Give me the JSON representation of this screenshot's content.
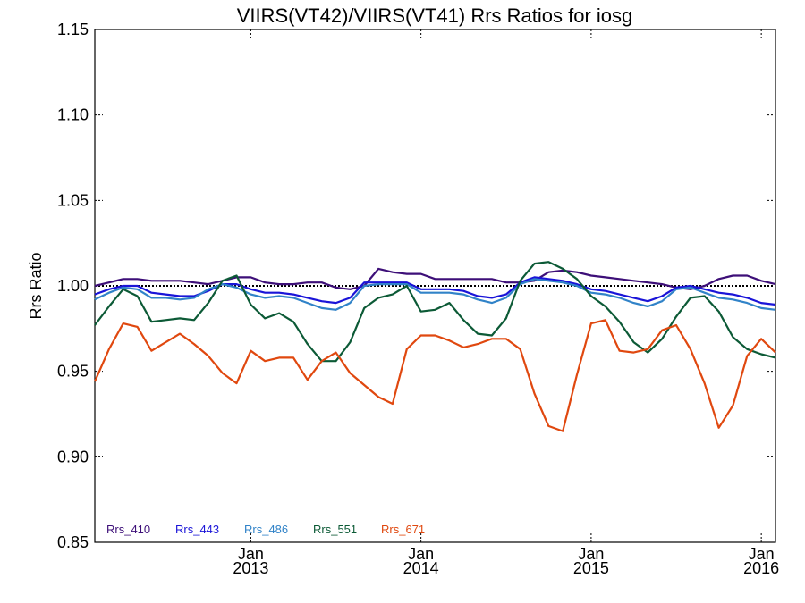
{
  "chart_data": {
    "type": "line",
    "title": "VIIRS(VT42)/VIIRS(VT41)  Rrs Ratios for iosg",
    "xlabel": "",
    "ylabel": "Rrs Ratio",
    "ylim": [
      0.85,
      1.15
    ],
    "y_ticks": [
      "0.85",
      "0.90",
      "0.95",
      "1.00",
      "1.05",
      "1.10",
      "1.15"
    ],
    "x_ticks": [
      {
        "month": "Jan",
        "year": "2013"
      },
      {
        "month": "Jan",
        "year": "2014"
      },
      {
        "month": "Jan",
        "year": "2015"
      },
      {
        "month": "Jan",
        "year": "2016"
      }
    ],
    "reference_line": 1.0,
    "grid": false,
    "legend_position": "bottom-left",
    "x_dates": [
      "2012-02",
      "2012-03",
      "2012-04",
      "2012-05",
      "2012-06",
      "2012-07",
      "2012-08",
      "2012-09",
      "2012-10",
      "2012-11",
      "2012-12",
      "2013-01",
      "2013-02",
      "2013-03",
      "2013-04",
      "2013-05",
      "2013-06",
      "2013-07",
      "2013-08",
      "2013-09",
      "2013-10",
      "2013-11",
      "2013-12",
      "2014-01",
      "2014-02",
      "2014-03",
      "2014-04",
      "2014-05",
      "2014-06",
      "2014-07",
      "2014-08",
      "2014-09",
      "2014-10",
      "2014-11",
      "2014-12",
      "2015-01",
      "2015-02",
      "2015-03",
      "2015-04",
      "2015-05",
      "2015-06",
      "2015-07",
      "2015-08",
      "2015-09",
      "2015-10",
      "2015-11",
      "2015-12",
      "2016-01",
      "2016-02"
    ],
    "series": [
      {
        "name": "Rrs_410",
        "color": "#3d0f78",
        "values": [
          1.0,
          1.002,
          1.004,
          1.004,
          1.003,
          1.003,
          1.003,
          1.002,
          1.001,
          1.003,
          1.005,
          1.005,
          1.002,
          1.001,
          1.001,
          1.002,
          1.002,
          0.999,
          0.998,
          1.0,
          1.01,
          1.008,
          1.007,
          1.007,
          1.004,
          1.004,
          1.004,
          1.004,
          1.004,
          1.002,
          1.002,
          1.003,
          1.008,
          1.009,
          1.008,
          1.006,
          1.005,
          1.004,
          1.003,
          1.002,
          1.001,
          0.999,
          0.998,
          1.0,
          1.004,
          1.006,
          1.006,
          1.003,
          1.001
        ]
      },
      {
        "name": "Rrs_443",
        "color": "#1a14d8",
        "values": [
          0.995,
          0.998,
          1.0,
          1.0,
          0.996,
          0.995,
          0.994,
          0.994,
          0.997,
          1.001,
          1.001,
          0.998,
          0.996,
          0.996,
          0.995,
          0.993,
          0.991,
          0.99,
          0.993,
          1.002,
          1.002,
          1.002,
          1.002,
          0.998,
          0.998,
          0.998,
          0.997,
          0.994,
          0.993,
          0.995,
          1.002,
          1.005,
          1.004,
          1.003,
          1.001,
          0.998,
          0.997,
          0.995,
          0.993,
          0.991,
          0.994,
          0.999,
          1.0,
          0.998,
          0.996,
          0.995,
          0.993,
          0.99,
          0.989
        ]
      },
      {
        "name": "Rrs_486",
        "color": "#3183c8",
        "values": [
          0.992,
          0.996,
          0.999,
          0.998,
          0.993,
          0.993,
          0.992,
          0.993,
          0.998,
          1.001,
          0.999,
          0.995,
          0.993,
          0.994,
          0.993,
          0.99,
          0.987,
          0.986,
          0.99,
          1.0,
          1.001,
          1.001,
          1.001,
          0.996,
          0.996,
          0.996,
          0.995,
          0.992,
          0.99,
          0.993,
          1.001,
          1.004,
          1.003,
          1.002,
          1.0,
          0.996,
          0.995,
          0.993,
          0.99,
          0.988,
          0.991,
          0.998,
          0.999,
          0.996,
          0.993,
          0.992,
          0.99,
          0.987,
          0.986
        ]
      },
      {
        "name": "Rrs_551",
        "color": "#0c5a36",
        "values": [
          0.977,
          0.988,
          0.998,
          0.994,
          0.979,
          0.98,
          0.981,
          0.98,
          0.99,
          1.003,
          1.006,
          0.989,
          0.981,
          0.984,
          0.979,
          0.966,
          0.956,
          0.956,
          0.967,
          0.987,
          0.993,
          0.995,
          1.0,
          0.985,
          0.986,
          0.99,
          0.98,
          0.972,
          0.971,
          0.981,
          1.003,
          1.013,
          1.014,
          1.01,
          1.004,
          0.994,
          0.988,
          0.979,
          0.967,
          0.961,
          0.969,
          0.982,
          0.993,
          0.994,
          0.985,
          0.97,
          0.963,
          0.96,
          0.958
        ]
      },
      {
        "name": "Rrs_671",
        "color": "#e0480f",
        "values": [
          0.944,
          0.963,
          0.978,
          0.976,
          0.962,
          0.967,
          0.972,
          0.966,
          0.959,
          0.949,
          0.943,
          0.962,
          0.956,
          0.958,
          0.958,
          0.945,
          0.956,
          0.961,
          0.949,
          0.942,
          0.935,
          0.931,
          0.963,
          0.971,
          0.971,
          0.968,
          0.964,
          0.966,
          0.969,
          0.969,
          0.963,
          0.937,
          0.918,
          0.915,
          0.948,
          0.978,
          0.98,
          0.962,
          0.961,
          0.963,
          0.974,
          0.977,
          0.963,
          0.943,
          0.917,
          0.93,
          0.959,
          0.969,
          0.961
        ]
      }
    ]
  }
}
